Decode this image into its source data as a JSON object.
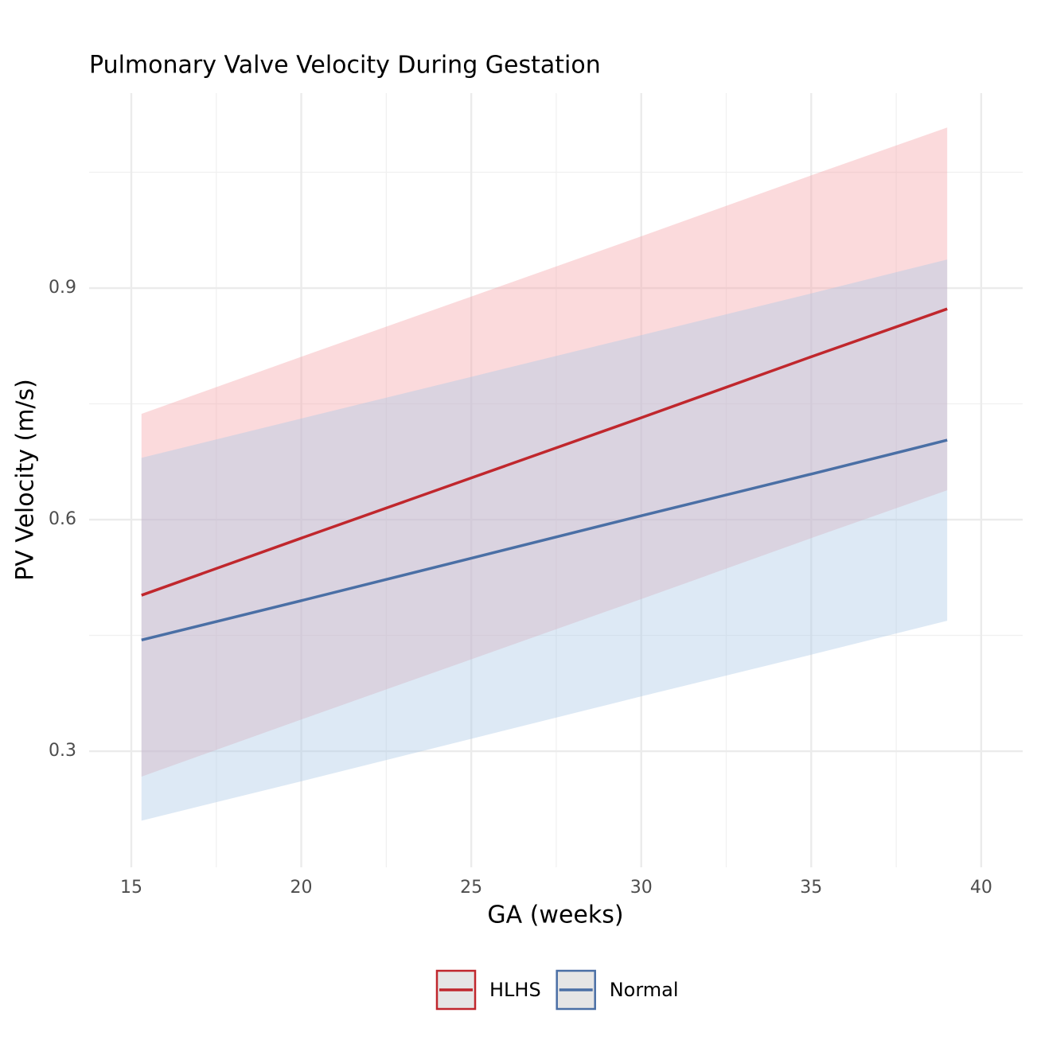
{
  "chart_data": {
    "type": "line",
    "title": "Pulmonary Valve Velocity During Gestation",
    "xlabel": "GA (weeks)",
    "ylabel": "PV Velocity (m/s)",
    "x": [
      15.3,
      20,
      25,
      30,
      35,
      39
    ],
    "series": [
      {
        "name": "HLHS",
        "color": "#c0272d",
        "band_color": "#f4a3a8",
        "values": [
          0.502,
          0.576,
          0.654,
          0.732,
          0.811,
          0.873
        ],
        "lower": [
          0.267,
          0.341,
          0.419,
          0.497,
          0.576,
          0.638
        ],
        "upper": [
          0.737,
          0.811,
          0.889,
          0.967,
          1.046,
          1.108
        ]
      },
      {
        "name": "Normal",
        "color": "#4a6fa5",
        "band_color": "#a9c8e6",
        "values": [
          0.444,
          0.495,
          0.55,
          0.605,
          0.659,
          0.703
        ],
        "lower": [
          0.21,
          0.261,
          0.316,
          0.371,
          0.425,
          0.469
        ],
        "upper": [
          0.68,
          0.731,
          0.785,
          0.839,
          0.893,
          0.937
        ]
      }
    ],
    "xlim": [
      13.76,
      41.22
    ],
    "ylim": [
      0.1495,
      1.1526
    ],
    "xticks": [
      15,
      20,
      25,
      30,
      35,
      40
    ],
    "yticks": [
      0.3,
      0.6,
      0.9
    ],
    "xminorticks": [
      17.5,
      22.5,
      27.5,
      32.5,
      37.5
    ],
    "yminorticks": [
      0.45,
      0.75,
      1.05
    ],
    "grid": true,
    "legend": "bottom"
  }
}
